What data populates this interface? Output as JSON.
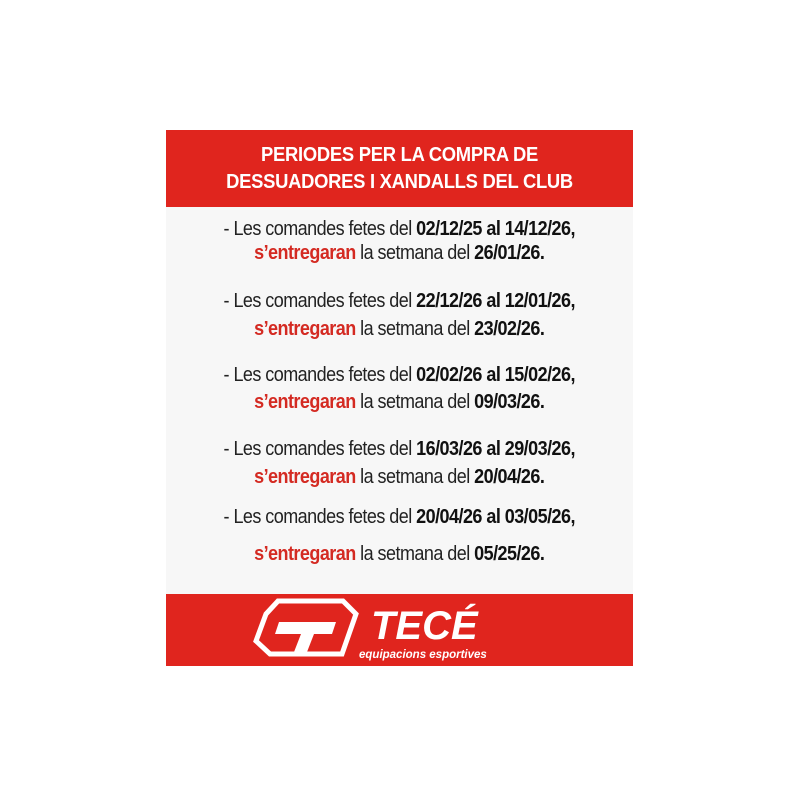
{
  "header": {
    "title_line1": "PERIODES PER LA COMPRA DE",
    "title_line2": "DESSUADORES I XANDALLS DEL CLUB"
  },
  "periods": [
    {
      "prefix": "- Les comandes fetes del ",
      "range": "02/12/25 al 14/12/26,",
      "verb": "s’entregaran",
      "mid": " la setmana del ",
      "delivery": "26/01/26."
    },
    {
      "prefix": "- Les comandes fetes del ",
      "range": "22/12/26 al 12/01/26,",
      "verb": "s’entregaran",
      "mid": " la setmana del ",
      "delivery": "23/02/26."
    },
    {
      "prefix": "- Les comandes fetes del ",
      "range": "02/02/26 al 15/02/26,",
      "verb": "s’entregaran",
      "mid": " la setmana del ",
      "delivery": "09/03/26."
    },
    {
      "prefix": "- Les comandes fetes del ",
      "range": "16/03/26 al 29/03/26,",
      "verb": "s’entregaran",
      "mid": " la setmana del ",
      "delivery": "20/04/26."
    },
    {
      "prefix": "- Les comandes fetes del ",
      "range": "20/04/26 al 03/05/26,",
      "verb": "s’entregaran",
      "mid": " la setmana del ",
      "delivery": "05/25/26."
    }
  ],
  "footer": {
    "brand": "TECÉ",
    "tagline": "equipacions esportives"
  },
  "colors": {
    "accent": "#e0251e",
    "highlight_text": "#d42a22",
    "background": "#f7f7f7"
  }
}
